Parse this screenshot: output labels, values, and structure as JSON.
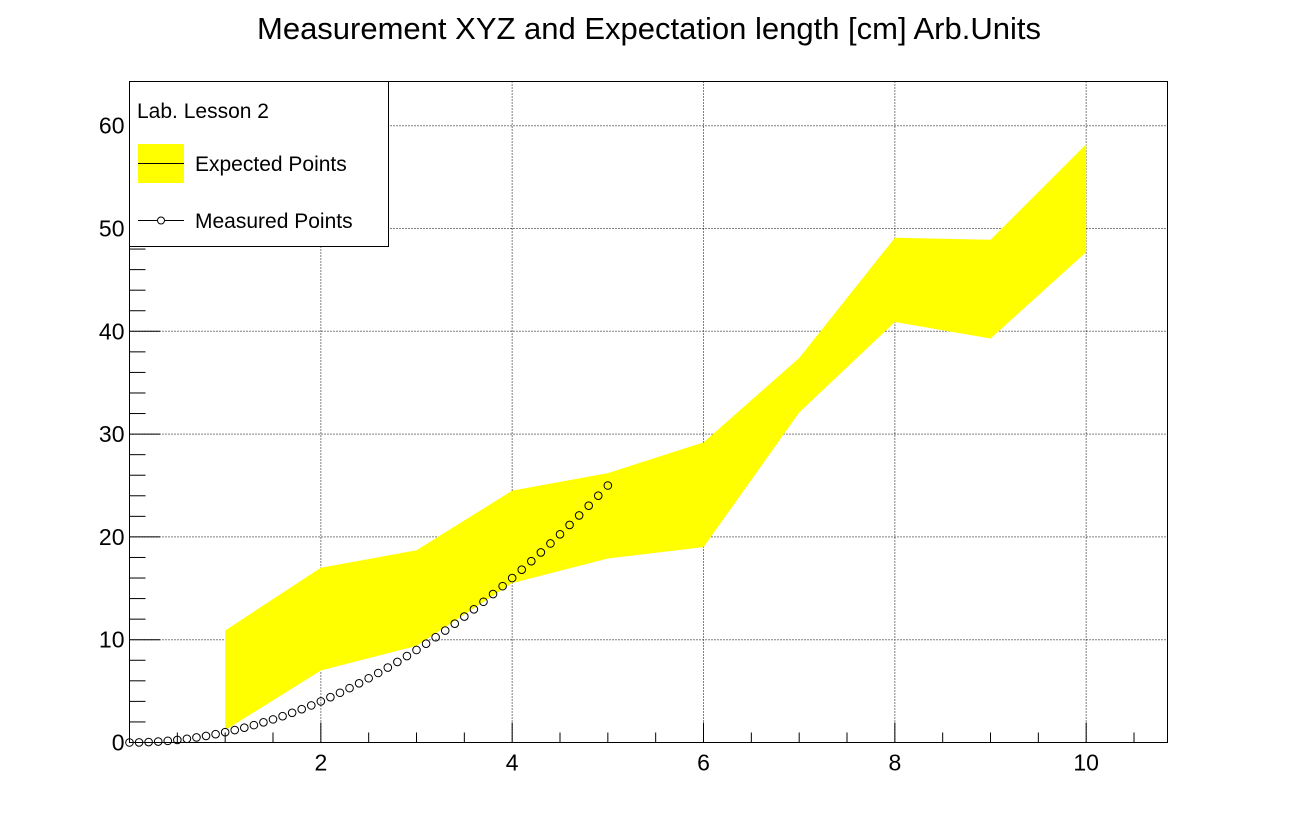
{
  "chart_data": {
    "type": "line",
    "title": "Measurement XYZ and Expectation length [cm] Arb.Units",
    "xlim": [
      0,
      10.85
    ],
    "ylim": [
      0,
      64.3
    ],
    "grid": true,
    "x_ticks": [
      "2",
      "4",
      "6",
      "8",
      "10"
    ],
    "y_ticks": [
      "0",
      "10",
      "20",
      "30",
      "40",
      "50",
      "60"
    ],
    "legend": {
      "header": "Lab. Lesson 2",
      "position": "top-left",
      "entries": [
        "Expected Points",
        "Measured Points"
      ]
    },
    "band_color": "#ffff00",
    "series": [
      {
        "name": "Expected Points",
        "kind": "band",
        "x": [
          1,
          2,
          3,
          4,
          5,
          6,
          7,
          8,
          9,
          10
        ],
        "upper": [
          10.9,
          17.0,
          18.7,
          24.5,
          26.2,
          29.2,
          37.4,
          49.1,
          48.9,
          58.2
        ],
        "lower": [
          1.2,
          7.0,
          9.4,
          15.5,
          17.9,
          19.0,
          32.1,
          40.9,
          39.3,
          47.7
        ]
      },
      {
        "name": "Measured Points",
        "kind": "markers",
        "x": [
          0.0,
          0.1,
          0.2,
          0.3,
          0.4,
          0.5,
          0.6,
          0.7,
          0.8,
          0.9,
          1.0,
          1.1,
          1.2,
          1.3,
          1.4,
          1.5,
          1.6,
          1.7,
          1.8,
          1.9,
          2.0,
          2.1,
          2.2,
          2.3,
          2.4,
          2.5,
          2.6,
          2.7,
          2.8,
          2.9,
          3.0,
          3.1,
          3.2,
          3.3,
          3.4,
          3.5,
          3.6,
          3.7,
          3.8,
          3.9,
          4.0,
          4.1,
          4.2,
          4.3,
          4.4,
          4.5,
          4.6,
          4.7,
          4.8,
          4.9,
          5.0
        ],
        "y": [
          0.0,
          0.01,
          0.04,
          0.09,
          0.16,
          0.25,
          0.36,
          0.49,
          0.64,
          0.81,
          1.0,
          1.21,
          1.44,
          1.69,
          1.96,
          2.25,
          2.56,
          2.89,
          3.24,
          3.61,
          4.0,
          4.41,
          4.84,
          5.29,
          5.76,
          6.25,
          6.76,
          7.29,
          7.84,
          8.41,
          9.0,
          9.61,
          10.24,
          10.89,
          11.56,
          12.25,
          12.96,
          13.69,
          14.44,
          15.21,
          16.0,
          16.81,
          17.64,
          18.49,
          19.36,
          20.25,
          21.16,
          22.09,
          23.04,
          24.01,
          25.0
        ]
      }
    ]
  }
}
